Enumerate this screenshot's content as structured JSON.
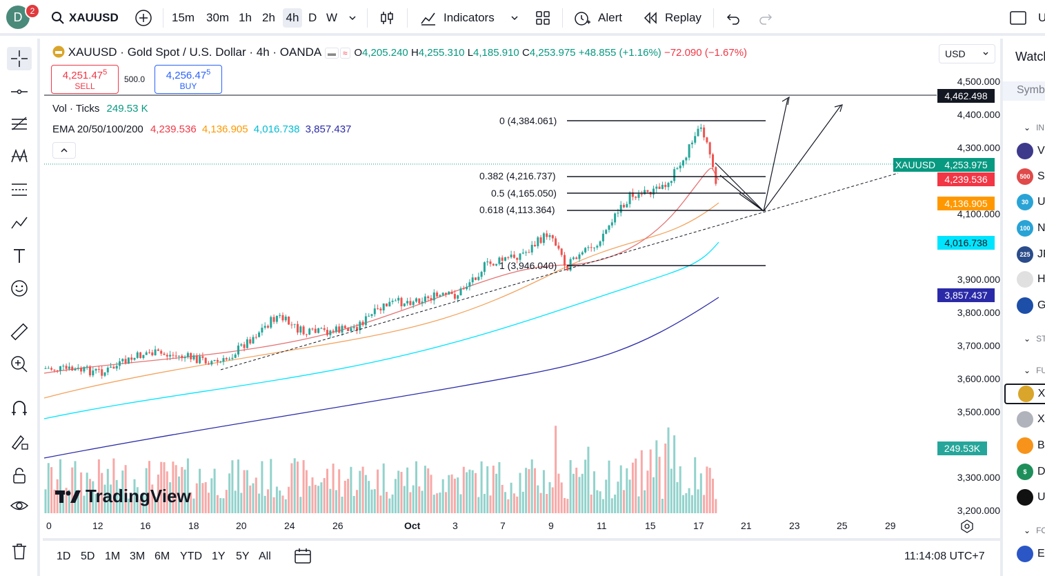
{
  "topbar": {
    "avatar_letter": "D",
    "notif_count": "2",
    "symbol": "XAUUSD",
    "timeframes": [
      "15m",
      "30m",
      "1h",
      "2h",
      "4h",
      "D",
      "W"
    ],
    "active_timeframe": "4h",
    "indicators_label": "Indicators",
    "alert_label": "Alert",
    "replay_label": "Replay"
  },
  "legend": {
    "title": "XAUUSD · Gold Spot / U.S. Dollar · 4h · OANDA",
    "open_label": "O",
    "open": "4,205.240",
    "high_label": "H",
    "high": "4,255.310",
    "low_label": "L",
    "low": "4,185.910",
    "close_label": "C",
    "close": "4,253.975",
    "change": "+48.855 (+1.16%)",
    "change2": "−72.090 (−1.67%)",
    "vol_label": "Vol · Ticks",
    "vol_value": "249.53 K",
    "ema_label": "EMA 20/50/100/200",
    "ema20": "4,239.536",
    "ema50": "4,136.905",
    "ema100": "4,016.738",
    "ema200": "3,857.437"
  },
  "trade": {
    "sell_price": "4,251.47",
    "sell_sup": "5",
    "sell_label": "SELL",
    "spread": "500.0",
    "buy_price": "4,256.47",
    "buy_sup": "5",
    "buy_label": "BUY"
  },
  "price_axis": {
    "currency": "USD",
    "ticks": [
      "4,500.000",
      "4,400.000",
      "4,300.000",
      "4,100.000",
      "3,900.000",
      "3,800.000",
      "3,700.000",
      "3,600.000",
      "3,500.000",
      "3,300.000",
      "3,200.000"
    ],
    "tags": {
      "hline": "4,462.498",
      "symbol": "XAUUSD",
      "last": "4,253.975",
      "ema20": "4,239.536",
      "ema50": "4,136.905",
      "ema100": "4,016.738",
      "ema200": "3,857.437",
      "volume": "249.53K"
    }
  },
  "fib": [
    {
      "label": "0 (4,384.061)"
    },
    {
      "label": "0.382 (4,216.737)"
    },
    {
      "label": "0.5 (4,165.050)"
    },
    {
      "label": "0.618 (4,113.364)"
    },
    {
      "label": "1 (3,946.040)"
    }
  ],
  "time_axis": [
    "0",
    "12",
    "16",
    "18",
    "20",
    "24",
    "26",
    "Oct",
    "3",
    "7",
    "9",
    "11",
    "15",
    "17",
    "21",
    "23",
    "25",
    "29"
  ],
  "watermark": "TradingView",
  "ranges": [
    "1D",
    "5D",
    "1M",
    "3M",
    "6M",
    "YTD",
    "1Y",
    "5Y",
    "All"
  ],
  "clock": "11:14:08 UTC+7",
  "watchlist": {
    "title": "Watcl",
    "symbol_header": "Symbo",
    "sections": [
      "IN",
      "ST",
      "FU",
      "FO"
    ],
    "items": [
      {
        "badge": "",
        "text": "VI",
        "color": "#3d3a8c"
      },
      {
        "badge": "500",
        "text": "SP",
        "color": "#e04a4a"
      },
      {
        "badge": "30",
        "text": "US",
        "color": "#29a3d6"
      },
      {
        "badge": "100",
        "text": "NA",
        "color": "#29a3d6"
      },
      {
        "badge": "225",
        "text": "JP",
        "color": "#2b4c8a"
      },
      {
        "badge": "",
        "text": "HI",
        "color": "#e0e0e0"
      },
      {
        "badge": "",
        "text": "GE",
        "color": "#1d4ea8"
      },
      {
        "badge": "",
        "text": "XA",
        "color": "#d9a52a"
      },
      {
        "badge": "",
        "text": "XA",
        "color": "#b0b3bc"
      },
      {
        "badge": "",
        "text": "BT",
        "color": "#f7931a"
      },
      {
        "badge": "$",
        "text": "DX",
        "color": "#1e8f5a"
      },
      {
        "badge": "",
        "text": "US",
        "color": "#111111"
      },
      {
        "badge": "",
        "text": "EU",
        "color": "#2a56c6"
      }
    ]
  },
  "colors": {
    "up": "#26a69a",
    "down": "#ef5350",
    "ema20": "#f23645",
    "ema50": "#ff9800",
    "ema100": "#00e5ff",
    "ema200": "#2a2aa8"
  }
}
